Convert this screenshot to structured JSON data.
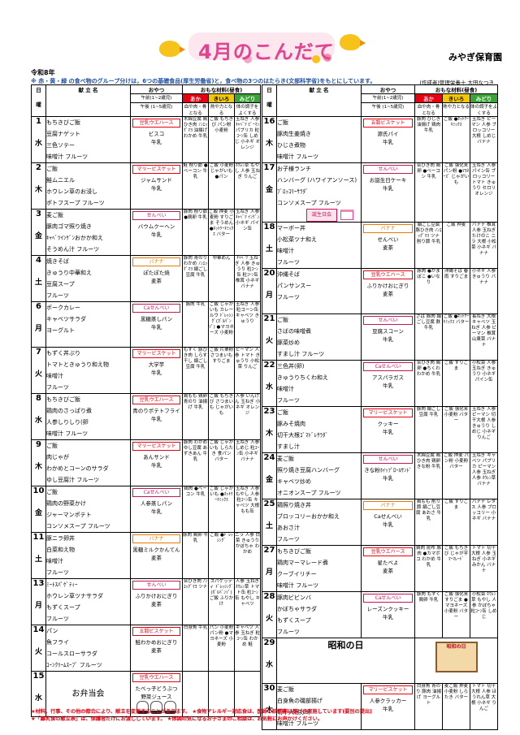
{
  "header": {
    "title": "4月のこんだて",
    "school": "みやぎ保育園",
    "era": "令和8年",
    "note_top": "※ 赤・黄・緑 の食べ物のグループ分けは，6つの基礎食品(厚生労働省)と，食べ物の3つのはたらき(文部科学省)をもとにしています。",
    "author": "(作成者)管理栄養士 大田なつき"
  },
  "columns": {
    "day": "日",
    "weekday": "曜",
    "menu": "献 立 名",
    "oyatsu": "おやつ",
    "am": "午前(1~2歳児)",
    "pm": "午後 (1~5歳児)",
    "okazu": "おもな材料(昼食)",
    "aka": "あか",
    "kiiro": "きいろ",
    "midori": "みどり",
    "aka_sub": "血や肉・骨となる",
    "kiiro_sub": "熱や力となる",
    "midori_sub": "体の調子をよくする"
  },
  "left_days": [
    {
      "d": "1",
      "w": "水",
      "dishes": [
        "もちきびご飯",
        "豆腐ナゲット",
        "三色ソテー",
        "味噌汁 フルーツ"
      ],
      "am": "豆乳ウエハース",
      "pm": [
        "ビスコ",
        "牛乳"
      ],
      "aka": "木綿豆腐 鶏ひき肉 ﾉﾝｴｯｸﾞﾏﾖ 油揚げ わかめ 牛乳",
      "kiiro": "ご飯 もちきび パン粉 小麦粉",
      "midori": "玉ねぎ 人参 ｷｬﾍﾞﾂ ﾋﾟｰﾏﾝ パプリカ 粒ｺｰﾝ缶 しめじ 小ネギ オレンジ"
    },
    {
      "d": "2",
      "w": "木",
      "dishes": [
        "ご飯",
        "鮭ムニエル",
        "ホウレン草のお浸し",
        "ポトフスープ フルーツ"
      ],
      "am": "マリービスケット",
      "pm": [
        "ジャムサンド",
        "牛乳"
      ],
      "aka": "鮭 削り節 ●ベーコン 牛乳",
      "kiiro": "ご飯 小麦粉 じゃがいも ●パン",
      "midori": "ﾎｳﾚﾝ草 もやし 人参 玉ねぎ りんご"
    },
    {
      "d": "3",
      "w": "金",
      "dishes": [
        "麦ご飯",
        "豚肉ゴマ照り焼き",
        "ｷｬﾍﾞﾂｲﾝｹﾞﾝおかか和え",
        "そうめん汁 フルーツ"
      ],
      "am": "せんべい",
      "pm": [
        "バウムクーヘン",
        "牛乳"
      ],
      "aka": "豚肉 削り節 ●鶏卵 牛乳",
      "kiiro": "ご飯 押麦 小麦粉 すりごま そうめん ●ﾎｯﾄｹｰｷﾐｯｸｽ バター",
      "midori": "玉ねぎ 人参 ｷｬﾍﾞﾂ ｲﾝｹﾞﾝ 小ネギ パイン缶"
    },
    {
      "d": "4",
      "w": "土",
      "dishes": [
        "焼きそば",
        "きゅうり中華和え",
        "豆腐スープ",
        "フルーツ"
      ],
      "am": "バナナ",
      "pm": [
        "ぽたぽた焼",
        "麦茶"
      ],
      "aka": "豚肉 青のり わかめ ﾉﾝｴｯｸﾞﾏﾖ 絹ごし豆腐 牛乳",
      "kiiro": "中華めん",
      "midori": "ｷｬﾍﾞﾂ 玉ねぎ 人参 きゅうり 粒ｺｰﾝ缶 粒ｺｰﾝ缶 椎茸 小ネギ バナナ"
    },
    {
      "d": "6",
      "w": "月",
      "dishes": [
        "ポークカレー",
        "キャベツサラダ",
        "ヨーグルト"
      ],
      "am": "Caせんべい",
      "pm": [
        "黒糖蒸しパン",
        "牛乳"
      ],
      "aka": "豚肉 牛乳",
      "kiiro": "ご飯 じゃがいも カレールウ ﾄﾞﾚｯｼﾝｸﾞ(ｶﾞﾙﾊﾞﾝｿﾞ) ●マヨネーズ 小麦粉",
      "midori": "玉ねぎ 人参 粒コーン缶 キャベツ きゅうり"
    },
    {
      "d": "7",
      "w": "火",
      "dishes": [
        "もずく丼ぶり",
        "トマトときゅうり和え物",
        "味噌汁",
        "フルーツ"
      ],
      "am": "マリービスケット",
      "pm": [
        "大学芋",
        "牛乳"
      ],
      "aka": "もずく 豚ひき肉 しらす干し 絹ごし豆腐 牛乳",
      "kiiro": "ご飯 片栗粉 さつまいも すりごま",
      "midori": "ピーマン 人参 トマト きゅうり 小松菜 りんご"
    },
    {
      "d": "8",
      "w": "水",
      "dishes": [
        "もちきびご飯",
        "鶏肉のさっぱり煮",
        "人参しりしり(卵",
        "味噌汁 フルーツ"
      ],
      "am": "豆乳ウエハース",
      "pm": [
        "青のりポテトフライ",
        "牛乳"
      ],
      "aka": "鶏もも 鶏卵 青のり 油揚げ 牛乳",
      "kiiro": "ご飯 もちきび さつまいも じゃがいも",
      "midori": "人参 いんげん 玉ねぎ 小ネギ オレンジ"
    },
    {
      "d": "9",
      "w": "木",
      "dishes": [
        "ご飯",
        "肉じゃが",
        "わかめとコーンのサラダ",
        "ゆし豆腐汁 フルーツ"
      ],
      "am": "マリービスケット",
      "pm": [
        "あんサンド",
        "牛乳"
      ],
      "aka": "豚肉 わかめ ゆし豆腐 あずきあん 牛乳",
      "kiiro": "ご飯 じゃがいも しらたき 食パン バター",
      "midori": "玉ねぎ 人参 しめじ 粒ｺｰﾝ缶 小ネギ バナナ"
    },
    {
      "d": "10",
      "w": "金",
      "dishes": [
        "ご飯",
        "鶏肉の野菜かけ",
        "ジャーマンポテト",
        "コンソメスープ フルーツ"
      ],
      "am": "Caせんべい",
      "pm": [
        "人参蒸しパン",
        "牛乳"
      ],
      "aka": "鶏肉 ●ベーコン 牛乳",
      "kiiro": "ご飯 じゃがいも ●ﾎｯﾄｹｰｷﾐｯｸｽ",
      "midori": "玉ねぎ 人参 もやし 人参 粒ｺｰﾝ缶 キャベツ 大根 もも缶"
    },
    {
      "d": "11",
      "w": "土",
      "dishes": [
        "豚ニラ卵丼",
        "白菜和え物",
        "味噌汁",
        "フルーツ"
      ],
      "am": "バナナ",
      "pm": [
        "黒糖ミルクかんてん",
        "麦茶"
      ],
      "aka": "豚肉 鶏卵 牛乳",
      "kiiro": "ご飯 ●ﾄﾞﾚｯｼﾝｸﾞ",
      "midori": "ニラ 人参 白菜 きゅうり かぼちゃ わかめ"
    },
    {
      "d": "13",
      "w": "月",
      "dishes": [
        "ﾐｰﾄｽﾊﾟｹﾞﾃｨｰ",
        "ホウレン草ツナサラダ",
        "もずくスープ",
        "フルーツ"
      ],
      "am": "せんべい",
      "pm": [
        "ふりかけおにぎり",
        "麦茶"
      ],
      "aka": "合ひき肉 ﾉﾝｴｯｸﾞﾏﾖ ツナ",
      "kiiro": "スパゲッティ ﾄﾞﾚｯｼﾝｸﾞ(ｶﾞﾙﾊﾞﾝｿﾞ) ご飯 ふりかけ",
      "midori": "人参 玉ねぎ ﾎｳﾚﾝ草 トマト缶 粒ｺｰﾝ缶 もやし キャベツ"
    },
    {
      "d": "14",
      "w": "火",
      "dishes": [
        "パン",
        "魚フライ",
        "コールスローサラダ",
        "ｺｰﾝｸﾘｰﾑｽｰﾌﾟ フルーツ"
      ],
      "am": "五穀ビスケット",
      "pm": [
        "鮭わかめおにぎり",
        "麦茶"
      ],
      "aka": "白身魚 牛乳",
      "kiiro": "パン 小麦粉 パン粉 ●マヨネーズ 小麦粉",
      "midori": "キャベツ 人参 玉ねぎ 粒ｺｰﾝ缶 わかめ 鮭"
    },
    {
      "d": "15",
      "w": "水",
      "dishes": [
        "お弁当会"
      ],
      "am": "豆乳ウエハース",
      "pm": [
        "たべっ子どうぶつ",
        "野菜ジュース"
      ],
      "aka": "",
      "kiiro": "",
      "midori": ""
    }
  ],
  "right_days": [
    {
      "d": "16",
      "w": "木",
      "dishes": [
        "ご飯",
        "豚肉生姜焼き",
        "ひじき煮物",
        "味噌汁 フルーツ"
      ],
      "am": "五穀ビスケット",
      "pm": [
        "源氏パイ",
        "牛乳"
      ],
      "aka": "豚肉 ひじき 油揚げ 鶏肉 牛乳",
      "kiiro": "ご飯 ●ﾎｯﾄｹｰｷﾐｯｸｽ",
      "midori": "玉ねぎ ピーマン 人参 ブロッコリー 大根 しめじ バナナ"
    },
    {
      "d": "17",
      "w": "金",
      "dishes": [
        "お子様ランチ",
        "ハンバーグ (ハワイアンソース)",
        "ﾌﾞﾛｯｺﾘｰｻﾗﾀﾞ",
        "コンソメスープ フルーツ"
      ],
      "am": "せんべい",
      "pm": [
        "お誕生日ケーキ",
        "牛乳"
      ],
      "birthday": "誕生日会",
      "aka": "合ひき肉 鶏卵 ●ベーコン 牛乳",
      "kiiro": "ご飯 強化米 パン粉 ●ﾏﾖﾈｰｽﾞ じゃがいも",
      "midori": "玉ねぎ 人参 パイン缶 ブロッコリー トマト きゅうり セロリ オレンジ"
    },
    {
      "d": "18",
      "w": "土",
      "dishes": [
        "マーボー丼",
        "小松菜ツナ和え",
        "味噌汁",
        "フルーツ"
      ],
      "am": "バナナ",
      "pm": [
        "せんべい",
        "麦茶"
      ],
      "aka": "絹ごし豆腐 豚ひき肉 ﾉﾝｴｯｸﾞﾏﾖ ツナ 削り節 牛乳",
      "kiiro": "ご飯 押麦",
      "midori": "バナナ 椎茸 人参 玉ねぎ たけのこ ニラ 大根 小松菜 小ネギ バナナ"
    },
    {
      "d": "20",
      "w": "月",
      "dishes": [
        "沖縄そば",
        "パンサンスー",
        "フルーツ"
      ],
      "am": "豆乳ウエハース",
      "pm": [
        "ふりかけおにぎり",
        "麦茶"
      ],
      "aka": "豚肉 ●かまぼこ ●いなり",
      "kiiro": "沖縄そば 春雨 すりごま",
      "midori": "小ネギ 人参 きゅうり バナナ"
    },
    {
      "d": "21",
      "w": "火",
      "dishes": [
        "ご飯",
        "さばの味噌煮",
        "豚菜炒め",
        "すまし汁 フルーツ"
      ],
      "am": "せんべい",
      "pm": [
        "豆腐スコーン",
        "牛乳"
      ],
      "aka": "さば 豚肉 絹ごし豆腐 麩 牛乳",
      "kiiro": "ご飯 ●ﾎｯﾄｹｰｷﾐｯｸｽ バター",
      "midori": "長ねぎ 大根 キャベツ 玉ねぎ 人参 ピーマン 椎茸 山東菜 バナナ"
    },
    {
      "d": "22",
      "w": "水",
      "dishes": [
        "三色丼(卵)",
        "きゅうりちくわ和え",
        "味噌汁",
        "フルーツ"
      ],
      "am": "Caせんべい",
      "pm": [
        "アスパラガス",
        "牛乳"
      ],
      "aka": "合ひき肉 鶏卵 ●ちくわ わかめ 牛乳",
      "kiiro": "ご飯 すりごま",
      "midori": "小松菜 人参 玉ねぎ きゅうり 小ネギ パイン缶"
    },
    {
      "d": "23",
      "w": "木",
      "dishes": [
        "ご飯",
        "豚みそ焼肉",
        "切干大根ｺﾞﾏﾄﾞﾚｻﾗﾀﾞ",
        "すまし汁"
      ],
      "am": "マリービスケット",
      "pm": [
        "クッキー",
        "牛乳"
      ],
      "aka": "豚肉 絹ごし豆腐 牛乳",
      "kiiro": "ご飯 強化米 小麦粉 バター",
      "midori": "玉ねぎ 人参 ピーマン 切干大根 人参 きゅうり しめじ 小ネギ りんご"
    },
    {
      "d": "24",
      "w": "金",
      "dishes": [
        "麦ご飯",
        "照り焼き豆腐ハンバーグ",
        "キャベツ炒め",
        "オニオンスープ フルーツ"
      ],
      "am": "せんべい",
      "pm": [
        "きな粉ﾎｲｯﾌﾟﾛｰﾙｻﾝﾄﾞ",
        "牛乳"
      ],
      "aka": "木綿豆腐 鶏ひき肉 鶏卵 きな粉 牛乳",
      "kiiro": "ご飯 押麦 パン粉 小麦粉 バター",
      "midori": "玉ねぎ キャベツ パプリカ ピーマン 人参 玉ねぎ 人参 ﾎｳﾚﾝ草 バナナ"
    },
    {
      "d": "25",
      "w": "土",
      "dishes": [
        "鶏照り焼き丼",
        "ブロッコリーおかか和え",
        "あおさ汁",
        "フルーツ"
      ],
      "am": "バナナ",
      "pm": [
        "Caせんべい",
        "牛乳"
      ],
      "aka": "鶏もも 削り節 絹ごし豆腐 あおさ 牛乳",
      "kiiro": "ご飯 すりごま",
      "midori": "バナナ レタス 人参 ブロッコリー 小ネギ バナナ"
    },
    {
      "d": "27",
      "w": "月",
      "dishes": [
        "もちきびご飯",
        "鶏肉マーマレード煮",
        "クーブイリチー",
        "味噌汁 フルーツ"
      ],
      "am": "豆乳ウエハース",
      "pm": [
        "星たべよ",
        "麦茶"
      ],
      "aka": "鶏肉 昆布 豚肉 ●カマボコ わかめ 牛乳",
      "kiiro": "ご飯 もちきび じゃが芋 ﾏｰﾏﾚｰﾄﾞ",
      "midori": "トマト 切干大根 人参 玉ねぎ 小ネギ みかん バナナ"
    },
    {
      "d": "28",
      "w": "火",
      "dishes": [
        "豚肉ビビンバ",
        "かぼちゃサラダ",
        "もずくスープ",
        "フルーツ"
      ],
      "am": "Caせんべい",
      "pm": [
        "レーズンクッキー",
        "牛乳"
      ],
      "aka": "豚肉 もずく 鶏卵 牛乳",
      "kiiro": "ご飯 強化米 すりごま ●マヨネーズ 小麦粉 バター",
      "midori": "小松菜 ﾎｳﾚﾝ草 もやし 人参 かぼちゃ 粒ｺｰﾝ缶 しめじ"
    },
    {
      "d": "29",
      "w": "水",
      "holiday": "昭和の日",
      "sign": "昭和の日"
    },
    {
      "d": "30",
      "w": "木",
      "dishes": [
        "麦ご飯",
        "白身魚の磯部揚げ",
        "切干大根炒め",
        "味噌汁 フルーツ"
      ],
      "am": "マリービスケット",
      "pm": [
        "人参クラッカー",
        "牛乳"
      ],
      "aka": "白身魚 青のり 豚肉 油揚げ ヨーグルト",
      "kiiro": "麦ご飯 押麦 小麦粉 しらたき バター",
      "midori": "トマト 切干大根 人参 ほうれん草 大根 小ネギ りんご"
    }
  ],
  "footer": {
    "line1": "★材料、行事、その他の都合により、献立を変更することがあります。 ★食物アレルギー対応食は、医師の診断書に基づき実施しています(要別の提出)",
    "line2": "★「離乳食の献立表」は、保護者だけにお渡ししています。 ★体調の気になるお子さまのご相談は、お気軽にお声かけください。"
  },
  "colors": {
    "aka": "#e60012",
    "kiiro": "#f3c800",
    "midori": "#3aa536",
    "title": "#e3428f"
  }
}
